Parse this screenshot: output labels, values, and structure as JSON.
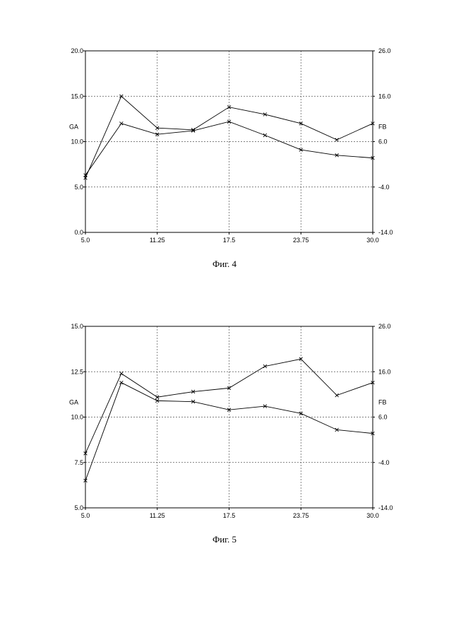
{
  "figures": [
    {
      "caption": "Фиг. 4",
      "chart_data": {
        "type": "line",
        "x": [
          5.0,
          8.125,
          11.25,
          14.375,
          17.5,
          20.625,
          23.75,
          26.875,
          30.0
        ],
        "xticks": [
          "5.0",
          "11.25",
          "17.5",
          "23.75",
          "30.0"
        ],
        "xtick_values": [
          5.0,
          11.25,
          17.5,
          23.75,
          30.0
        ],
        "xlim": [
          5.0,
          30.0
        ],
        "left_axis": {
          "label": "GA",
          "ylim": [
            0.0,
            20.0
          ],
          "ticks": [
            "0.0",
            "5.0",
            "10.0",
            "15.0",
            "20.0"
          ],
          "tick_values": [
            0,
            5,
            10,
            15,
            20
          ]
        },
        "right_axis": {
          "label": "FB",
          "ylim": [
            -14.0,
            26.0
          ],
          "ticks": [
            "-14.0",
            "-4.0",
            "6.0",
            "16.0",
            "26.0"
          ],
          "tick_values": [
            -14,
            -4,
            6,
            16,
            26
          ]
        },
        "series": [
          {
            "axis": "left",
            "values": [
              6.0,
              15.0,
              11.5,
              11.3,
              13.8,
              13.0,
              12.0,
              10.2,
              12.0
            ]
          },
          {
            "axis": "left",
            "values": [
              6.3,
              12.0,
              10.8,
              11.2,
              12.2,
              10.7,
              9.1,
              8.5,
              8.2
            ]
          }
        ],
        "grid": true
      }
    },
    {
      "caption": "Фиг. 5",
      "chart_data": {
        "type": "line",
        "x": [
          5.0,
          8.125,
          11.25,
          14.375,
          17.5,
          20.625,
          23.75,
          26.875,
          30.0
        ],
        "xticks": [
          "5.0",
          "11.25",
          "17.5",
          "23.75",
          "30.0"
        ],
        "xtick_values": [
          5.0,
          11.25,
          17.5,
          23.75,
          30.0
        ],
        "xlim": [
          5.0,
          30.0
        ],
        "left_axis": {
          "label": "GA",
          "ylim": [
            5.0,
            15.0
          ],
          "ticks": [
            "5.0",
            "7.5",
            "10.0",
            "12.5",
            "15.0"
          ],
          "tick_values": [
            5,
            7.5,
            10,
            12.5,
            15
          ]
        },
        "right_axis": {
          "label": "FB",
          "ylim": [
            -14.0,
            26.0
          ],
          "ticks": [
            "-14.0",
            "-4.0",
            "6.0",
            "16.0",
            "26.0"
          ],
          "tick_values": [
            -14,
            -4,
            6,
            16,
            26
          ]
        },
        "series": [
          {
            "axis": "left",
            "values": [
              8.0,
              12.4,
              11.1,
              11.4,
              11.6,
              12.8,
              13.2,
              11.2,
              11.9
            ]
          },
          {
            "axis": "left",
            "values": [
              6.5,
              11.9,
              10.9,
              10.85,
              10.4,
              10.6,
              10.2,
              9.3,
              9.1
            ]
          }
        ],
        "grid": true
      }
    }
  ]
}
